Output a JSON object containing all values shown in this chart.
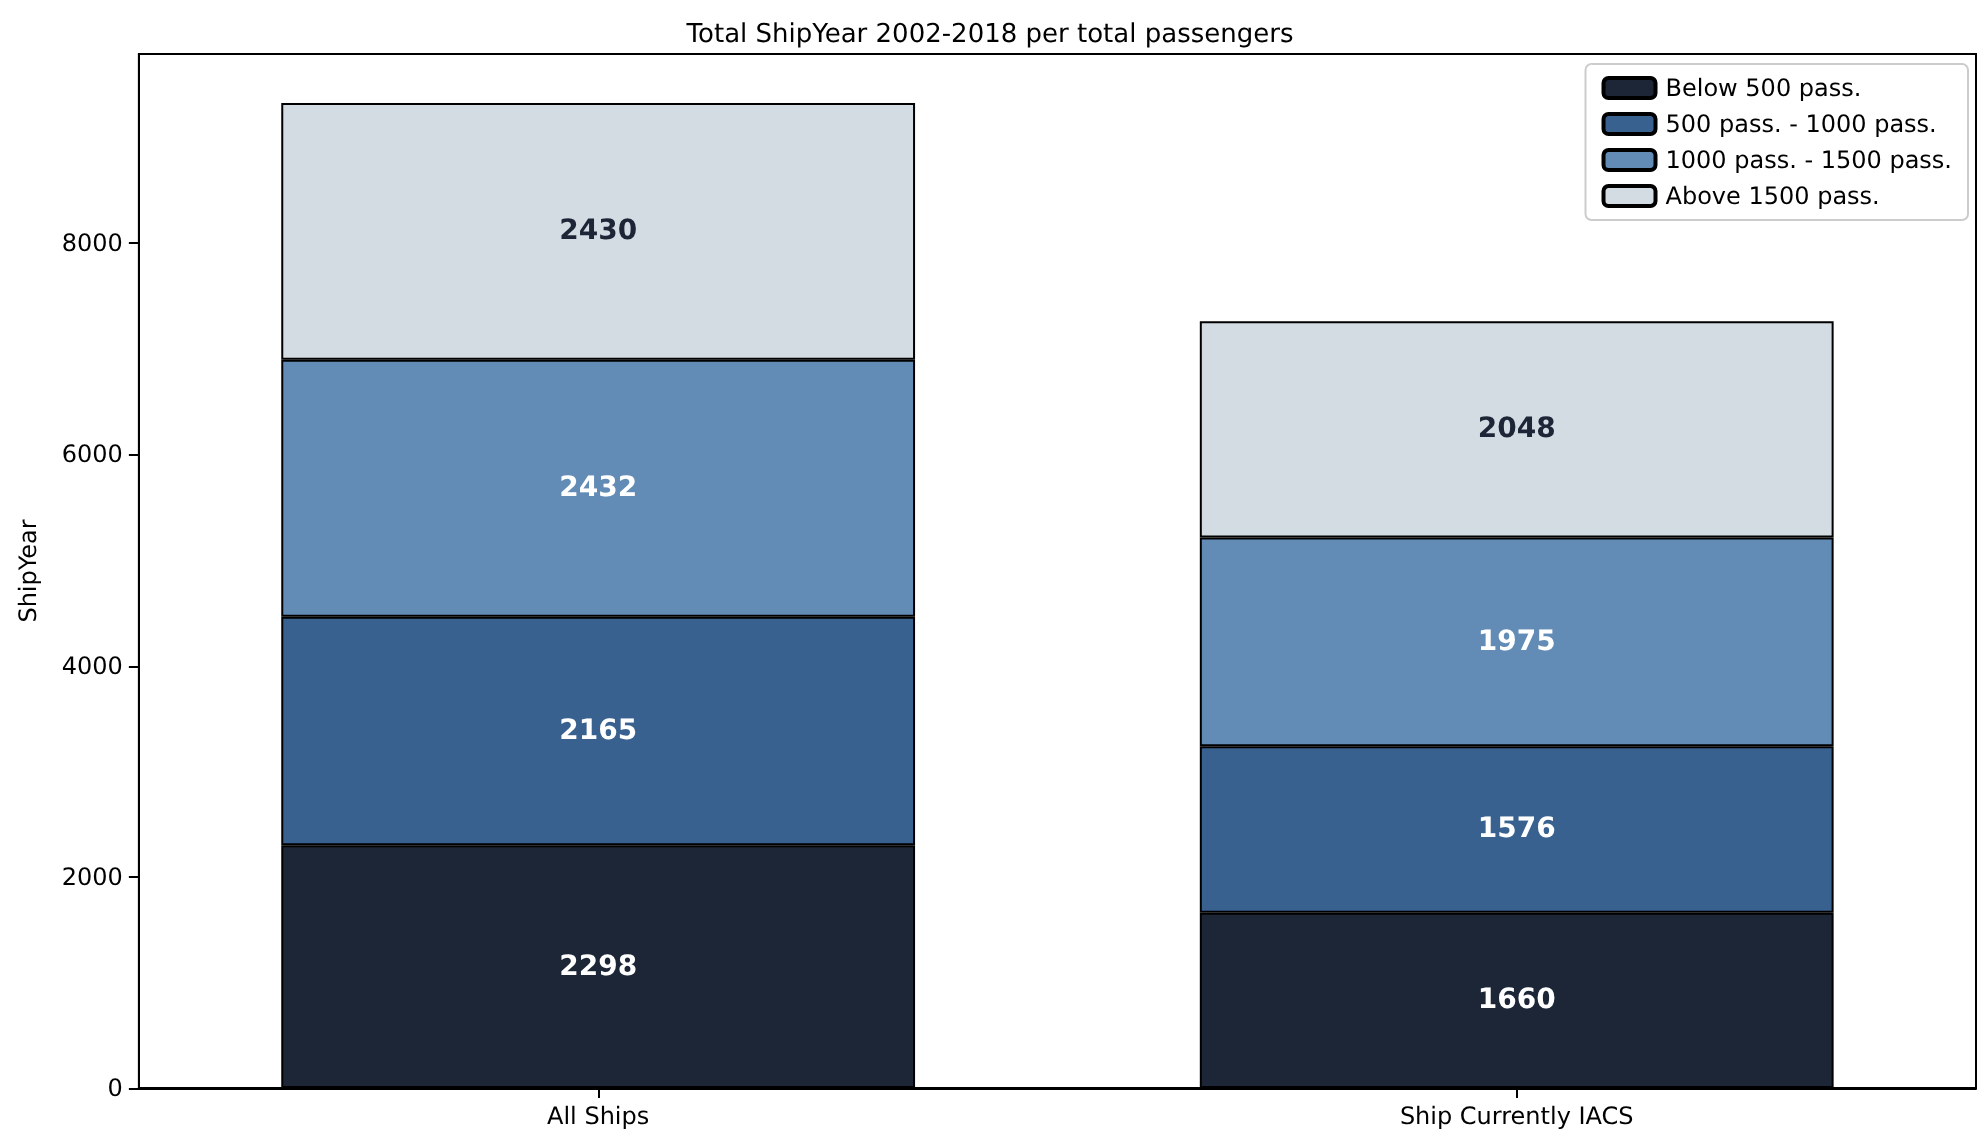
{
  "chart_data": {
    "type": "bar",
    "title": "Total ShipYear 2002-2018 per total passengers",
    "ylabel": "ShipYear",
    "categories": [
      "All Ships",
      "Ship Currently IACS"
    ],
    "series": [
      {
        "name": "Below 500 pass.",
        "color": "#1c2636",
        "values": [
          2298,
          1660
        ]
      },
      {
        "name": "500 pass. - 1000 pass.",
        "color": "#38618f",
        "values": [
          2165,
          1576
        ]
      },
      {
        "name": "1000 pass. - 1500 pass.",
        "color": "#628cb6",
        "values": [
          2432,
          1975
        ]
      },
      {
        "name": "Above 1500 pass.",
        "color": "#d3dce3",
        "values": [
          2430,
          2048
        ]
      }
    ],
    "stacked": true,
    "data_labels": true,
    "legend": "top right",
    "grid": false,
    "ylim": [
      0,
      9790
    ],
    "yticks": [
      0,
      2000,
      4000,
      6000,
      8000
    ]
  }
}
